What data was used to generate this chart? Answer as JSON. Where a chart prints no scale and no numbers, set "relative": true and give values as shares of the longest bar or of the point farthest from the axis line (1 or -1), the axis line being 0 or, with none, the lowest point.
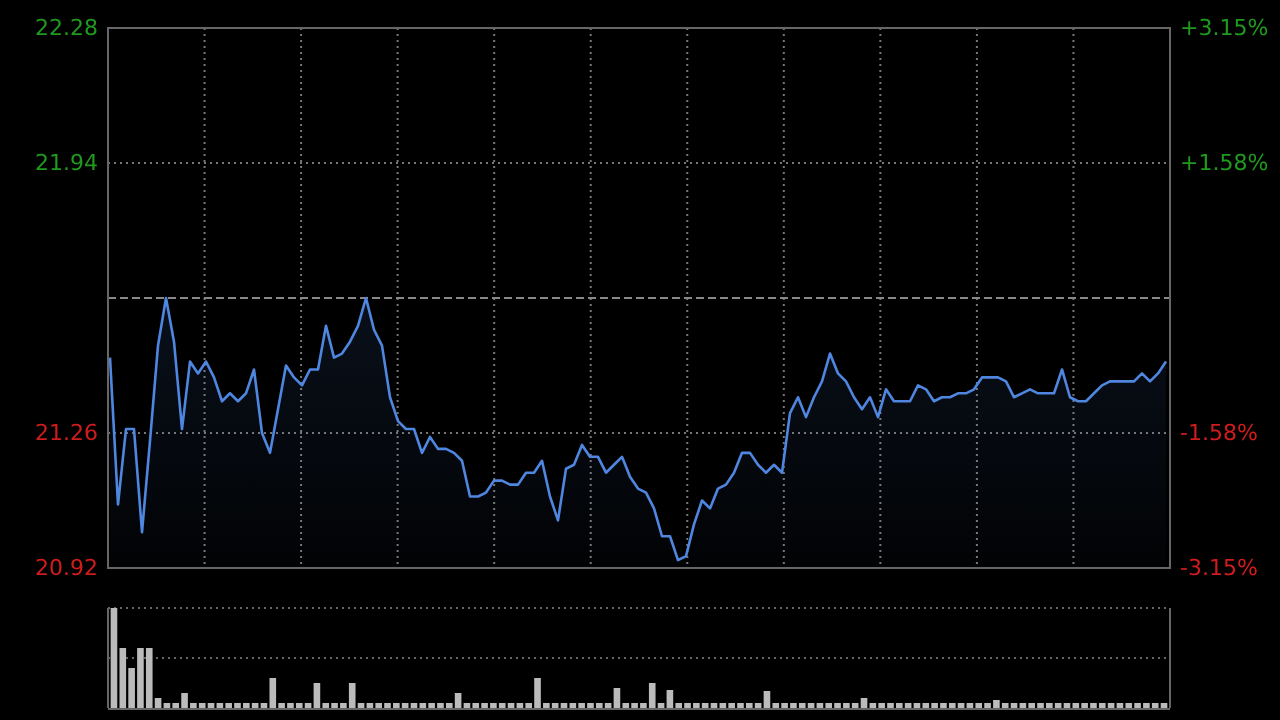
{
  "chart_data": [
    {
      "type": "line",
      "categories": [
        null,
        null,
        null,
        null,
        null,
        null,
        null,
        null,
        null,
        null,
        null,
        null,
        null,
        null,
        null,
        null,
        null,
        null,
        null,
        null,
        null,
        null,
        null,
        null,
        null,
        null,
        null,
        null,
        null,
        null,
        null,
        null,
        null,
        null,
        null,
        null,
        null,
        null,
        null,
        null,
        null,
        null,
        null,
        null,
        null,
        null,
        null,
        null,
        null,
        null,
        null,
        null,
        null,
        null,
        null,
        null,
        null,
        null,
        null,
        null,
        null,
        null,
        null,
        null,
        null,
        null,
        null,
        null,
        null,
        null,
        null,
        null,
        null,
        null,
        null,
        null,
        null,
        null,
        null,
        null,
        null,
        null,
        null,
        null,
        null,
        null,
        null,
        null,
        null,
        null,
        null,
        null,
        null,
        null,
        null,
        null,
        null,
        null,
        null,
        null,
        null,
        null,
        null,
        null,
        null,
        null,
        null,
        null,
        null,
        null,
        null,
        null,
        null,
        null,
        null,
        null,
        null,
        null,
        null,
        null,
        null,
        null,
        null,
        null,
        null,
        null,
        null,
        null,
        null,
        null,
        null,
        null,
        null
      ],
      "ylim": [
        20.92,
        22.28
      ],
      "yticks": [
        20.92,
        21.26,
        21.94,
        22.28
      ],
      "y2lim": [
        -3.15,
        3.15
      ],
      "y2ticks": [
        {
          "value": -3.15,
          "label": "-3.15%"
        },
        {
          "value": -1.58,
          "label": "-1.58%"
        },
        {
          "value": 1.58,
          "label": "+1.58%"
        },
        {
          "value": 3.15,
          "label": "+3.15%"
        }
      ],
      "tick_labels": "y",
      "grid": true,
      "ref_lines": [
        {
          "axis": "y",
          "value": 21.6,
          "color": "#888888",
          "line_style": "dashed"
        }
      ],
      "series": [
        {
          "color": "#4f86e0",
          "values": [
            21.45,
            21.08,
            21.27,
            21.27,
            21.01,
            21.24,
            21.48,
            21.6,
            21.49,
            21.27,
            21.44,
            21.41,
            21.44,
            21.4,
            21.34,
            21.36,
            21.34,
            21.36,
            21.42,
            21.26,
            21.21,
            21.32,
            21.43,
            21.4,
            21.38,
            21.42,
            21.42,
            21.53,
            21.45,
            21.46,
            21.49,
            21.53,
            21.6,
            21.52,
            21.48,
            21.35,
            21.29,
            21.27,
            21.27,
            21.21,
            21.25,
            21.22,
            21.22,
            21.21,
            21.19,
            21.1,
            21.1,
            21.11,
            21.14,
            21.14,
            21.13,
            21.13,
            21.16,
            21.16,
            21.19,
            21.1,
            21.04,
            21.17,
            21.18,
            21.23,
            21.2,
            21.2,
            21.16,
            21.18,
            21.2,
            21.15,
            21.12,
            21.11,
            21.07,
            21.0,
            21.0,
            20.94,
            20.95,
            21.03,
            21.09,
            21.07,
            21.12,
            21.13,
            21.16,
            21.21,
            21.21,
            21.18,
            21.16,
            21.18,
            21.16,
            21.31,
            21.35,
            21.3,
            21.35,
            21.39,
            21.46,
            21.41,
            21.39,
            21.35,
            21.32,
            21.35,
            21.3,
            21.37,
            21.34,
            21.34,
            21.34,
            21.38,
            21.37,
            21.34,
            21.35,
            21.35,
            21.36,
            21.36,
            21.37,
            21.4,
            21.4,
            21.4,
            21.39,
            21.35,
            21.36,
            21.37,
            21.36,
            21.36,
            21.36,
            21.42,
            21.35,
            21.34,
            21.34,
            21.36,
            21.38,
            21.39,
            21.39,
            21.39,
            21.39,
            21.41,
            21.39,
            21.41,
            21.44
          ]
        }
      ]
    },
    {
      "type": "bar",
      "relative": true,
      "grid": true,
      "tick_labels": false,
      "ref_lines": [
        {
          "axis": "y",
          "value": 0.5,
          "color": "#666666",
          "line_style": "dotted"
        }
      ],
      "categories": [
        null,
        null,
        null,
        null,
        null,
        null,
        null,
        null,
        null,
        null,
        null,
        null,
        null,
        null,
        null,
        null,
        null,
        null,
        null,
        null,
        null,
        null,
        null,
        null,
        null,
        null,
        null,
        null,
        null,
        null,
        null,
        null,
        null,
        null,
        null,
        null,
        null,
        null,
        null,
        null,
        null,
        null,
        null,
        null,
        null,
        null,
        null,
        null,
        null,
        null,
        null,
        null,
        null,
        null,
        null,
        null,
        null,
        null,
        null,
        null,
        null,
        null,
        null,
        null,
        null,
        null,
        null,
        null,
        null,
        null,
        null,
        null,
        null,
        null,
        null,
        null,
        null,
        null,
        null,
        null,
        null,
        null,
        null,
        null,
        null,
        null,
        null,
        null,
        null,
        null,
        null,
        null,
        null,
        null,
        null,
        null,
        null,
        null,
        null,
        null,
        null,
        null,
        null,
        null,
        null,
        null,
        null,
        null,
        null,
        null,
        null,
        null,
        null,
        null,
        null,
        null,
        null,
        null,
        null,
        null
      ],
      "color": "#bbbbbb",
      "values": [
        1,
        0.6,
        0.4,
        0.6,
        0.6,
        0.1,
        0.05,
        0.05,
        0.15,
        0.05,
        0.05,
        0.05,
        0.05,
        0.05,
        0.05,
        0.05,
        0.05,
        0.05,
        0.3,
        0.05,
        0.05,
        0.05,
        0.05,
        0.25,
        0.05,
        0.05,
        0.05,
        0.25,
        0.05,
        0.05,
        0.05,
        0.05,
        0.05,
        0.05,
        0.05,
        0.05,
        0.05,
        0.05,
        0.05,
        0.15,
        0.05,
        0.05,
        0.05,
        0.05,
        0.05,
        0.05,
        0.05,
        0.05,
        0.3,
        0.05,
        0.05,
        0.05,
        0.05,
        0.05,
        0.05,
        0.05,
        0.05,
        0.2,
        0.05,
        0.05,
        0.05,
        0.25,
        0.05,
        0.18,
        0.05,
        0.05,
        0.05,
        0.05,
        0.05,
        0.05,
        0.05,
        0.05,
        0.05,
        0.05,
        0.17,
        0.05,
        0.05,
        0.05,
        0.05,
        0.05,
        0.05,
        0.05,
        0.05,
        0.05,
        0.05,
        0.1,
        0.05,
        0.05,
        0.05,
        0.05,
        0.05,
        0.05,
        0.05,
        0.05,
        0.05,
        0.05,
        0.05,
        0.05,
        0.05,
        0.05,
        0.08,
        0.05,
        0.05,
        0.05,
        0.05,
        0.05,
        0.05,
        0.05,
        0.05,
        0.05,
        0.05,
        0.05,
        0.05,
        0.05,
        0.05,
        0.05,
        0.05,
        0.05,
        0.05,
        0.05
      ]
    }
  ]
}
